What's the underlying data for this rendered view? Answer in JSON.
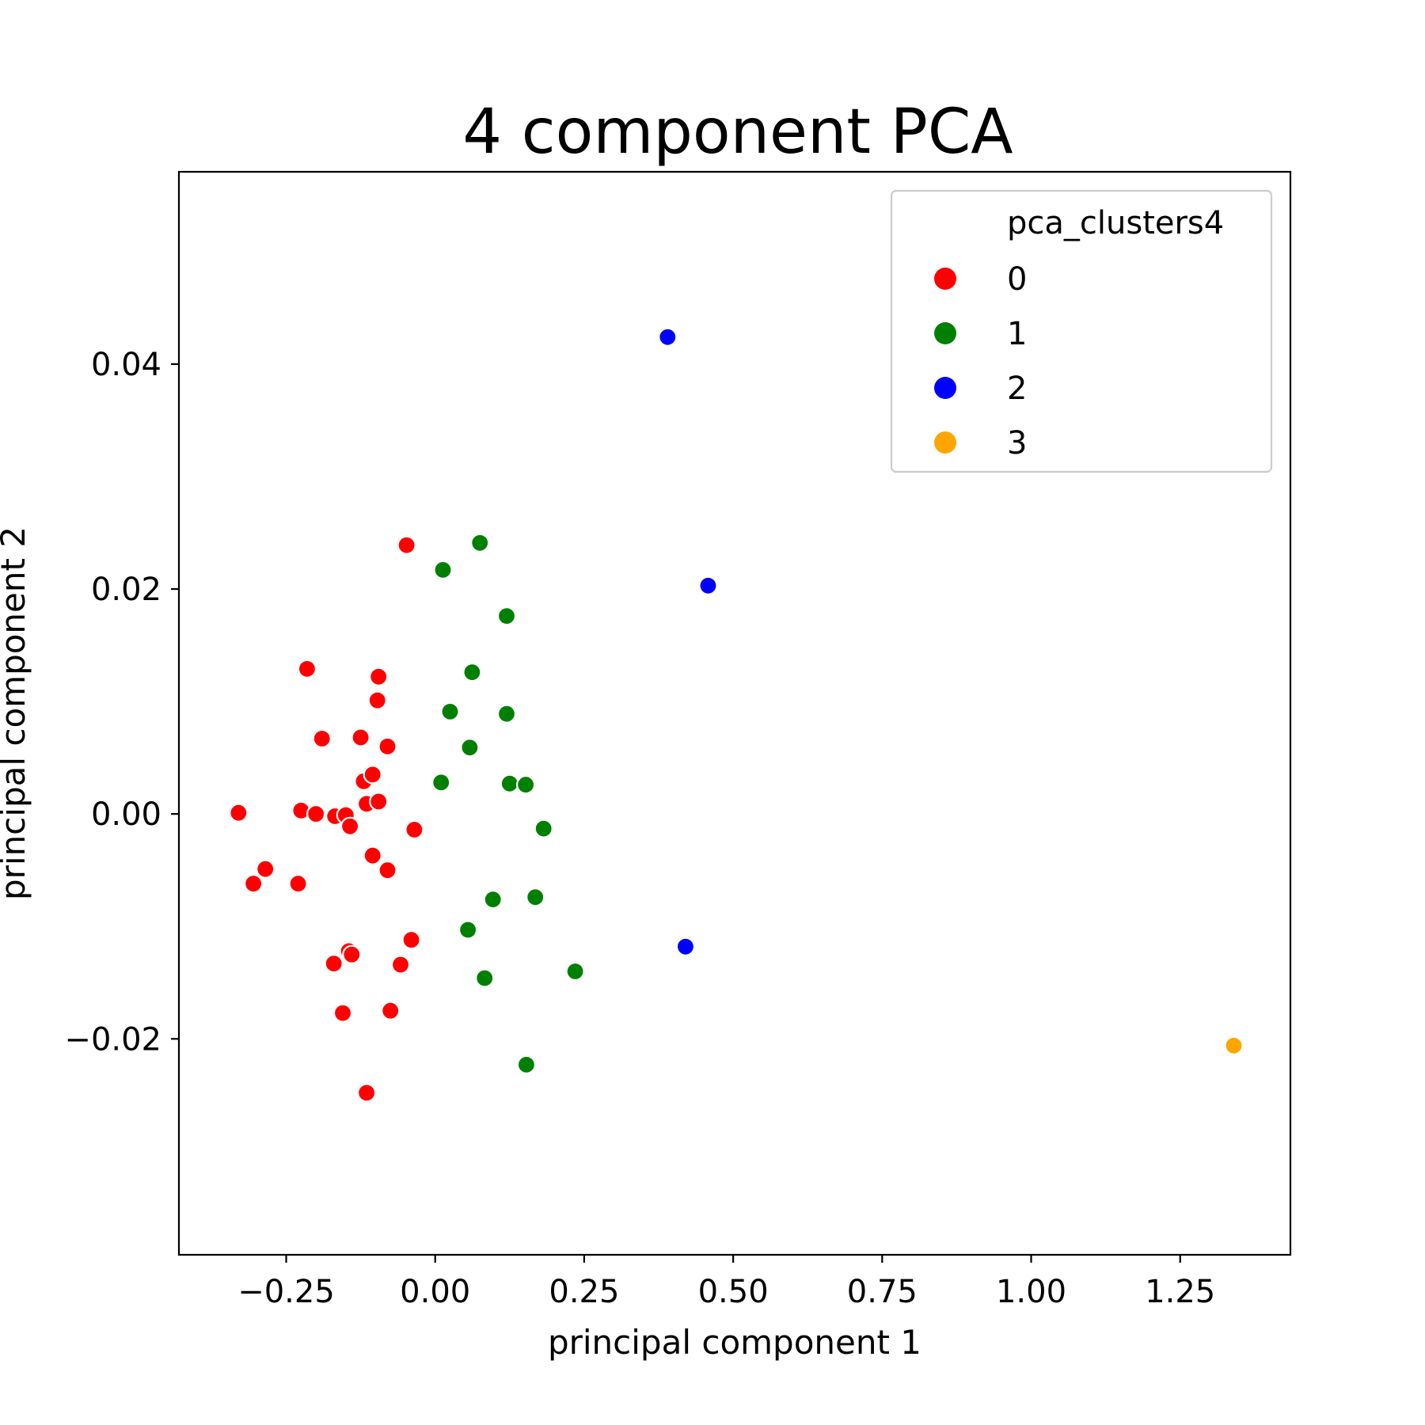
{
  "chart_data": {
    "type": "scatter",
    "title": "4 component PCA",
    "xlabel": "principal component 1",
    "ylabel": "principal component 2",
    "xlim": [
      -0.43,
      1.435
    ],
    "ylim": [
      -0.0392,
      0.0571
    ],
    "xticks": [
      -0.25,
      0.0,
      0.25,
      0.5,
      0.75,
      1.0,
      1.25
    ],
    "xtick_labels": [
      "−0.25",
      "0.00",
      "0.25",
      "0.50",
      "0.75",
      "1.00",
      "1.25"
    ],
    "yticks": [
      -0.02,
      0.0,
      0.02,
      0.04
    ],
    "ytick_labels": [
      "−0.02",
      "0.00",
      "0.02",
      "0.04"
    ],
    "grid": false,
    "legend": {
      "title": "pca_clusters4",
      "placement": "top-right"
    },
    "series": [
      {
        "name": "0",
        "color": "#ff0000",
        "points": [
          [
            -0.33,
            0.0001
          ],
          [
            -0.305,
            -0.0062
          ],
          [
            -0.285,
            -0.0049
          ],
          [
            -0.23,
            -0.0062
          ],
          [
            -0.225,
            0.0003
          ],
          [
            -0.215,
            0.0129
          ],
          [
            -0.2,
            0.0
          ],
          [
            -0.19,
            0.0067
          ],
          [
            -0.17,
            -0.0133
          ],
          [
            -0.168,
            -0.0002
          ],
          [
            -0.155,
            -0.0177
          ],
          [
            -0.15,
            -0.0001
          ],
          [
            -0.145,
            -0.0122
          ],
          [
            -0.143,
            -0.0011
          ],
          [
            -0.14,
            -0.0125
          ],
          [
            -0.125,
            0.0068
          ],
          [
            -0.12,
            0.0029
          ],
          [
            -0.115,
            0.0009
          ],
          [
            -0.115,
            -0.0248
          ],
          [
            -0.105,
            0.0035
          ],
          [
            -0.105,
            -0.0037
          ],
          [
            -0.097,
            0.0101
          ],
          [
            -0.095,
            0.0122
          ],
          [
            -0.095,
            0.0011
          ],
          [
            -0.08,
            0.006
          ],
          [
            -0.08,
            -0.005
          ],
          [
            -0.075,
            -0.0175
          ],
          [
            -0.058,
            -0.0134
          ],
          [
            -0.048,
            0.0239
          ],
          [
            -0.04,
            -0.0112
          ],
          [
            -0.035,
            -0.0014
          ]
        ]
      },
      {
        "name": "1",
        "color": "#008000",
        "points": [
          [
            0.01,
            0.0028
          ],
          [
            0.013,
            0.0217
          ],
          [
            0.025,
            0.0091
          ],
          [
            0.055,
            -0.0103
          ],
          [
            0.058,
            0.0059
          ],
          [
            0.062,
            0.0126
          ],
          [
            0.075,
            0.0241
          ],
          [
            0.083,
            -0.0146
          ],
          [
            0.097,
            -0.0076
          ],
          [
            0.12,
            0.0089
          ],
          [
            0.12,
            0.0176
          ],
          [
            0.125,
            0.0027
          ],
          [
            0.152,
            0.0026
          ],
          [
            0.153,
            -0.0223
          ],
          [
            0.168,
            -0.0074
          ],
          [
            0.182,
            -0.0013
          ],
          [
            0.235,
            -0.014
          ]
        ]
      },
      {
        "name": "2",
        "color": "#0000ff",
        "points": [
          [
            0.39,
            0.0424
          ],
          [
            0.42,
            -0.0118
          ],
          [
            0.458,
            0.0203
          ]
        ]
      },
      {
        "name": "3",
        "color": "#ffa500",
        "points": [
          [
            1.34,
            -0.0206
          ]
        ]
      }
    ]
  }
}
